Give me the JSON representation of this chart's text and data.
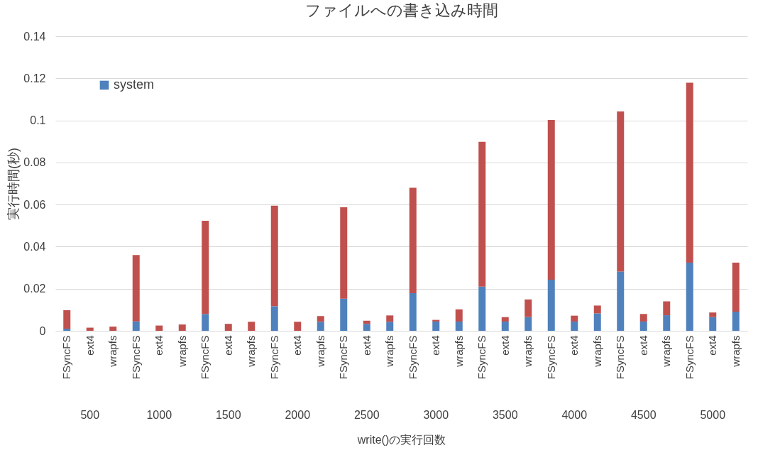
{
  "chart_data": {
    "type": "bar",
    "title": "ファイルへの書き込み時間",
    "xlabel": "write()の実行回数",
    "ylabel": "実行時間(秒)",
    "categories": [
      "FSyncFS",
      "ext4",
      "wrapfs",
      "FSyncFS",
      "ext4",
      "wrapfs",
      "FSyncFS",
      "ext4",
      "wrapfs",
      "FSyncFS",
      "ext4",
      "wrapfs",
      "FSyncFS",
      "ext4",
      "wrapfs",
      "FSyncFS",
      "ext4",
      "wrapfs",
      "FSyncFS",
      "ext4",
      "wrapfs",
      "FSyncFS",
      "ext4",
      "wrapfs",
      "FSyncFS",
      "ext4",
      "wrapfs",
      "FSyncFS",
      "ext4",
      "wrapfs"
    ],
    "annotations": [
      "500",
      "1000",
      "1500",
      "2000",
      "2500",
      "3000",
      "3500",
      "4000",
      "4500",
      "5000"
    ],
    "stacked": true,
    "series": [
      {
        "name": "system",
        "color": "#4f81bd",
        "values": [
          0.001,
          0,
          0,
          0.0045,
          0,
          0,
          0.008,
          0,
          0,
          0.0117,
          0,
          0.0043,
          0.0153,
          0.0033,
          0.0043,
          0.0179,
          0.0044,
          0.0044,
          0.021,
          0.0044,
          0.0065,
          0.0243,
          0.0044,
          0.0083,
          0.0282,
          0.0044,
          0.0074,
          0.0324,
          0.0065,
          0.0091
        ]
      },
      {
        "color": "#c0504d",
        "values": [
          0.0088,
          0.0015,
          0.002,
          0.0315,
          0.0025,
          0.003,
          0.0443,
          0.0033,
          0.0043,
          0.0478,
          0.0043,
          0.0027,
          0.0434,
          0.0015,
          0.003,
          0.0501,
          0.0008,
          0.0058,
          0.0688,
          0.0021,
          0.0084,
          0.0759,
          0.0028,
          0.0037,
          0.076,
          0.0036,
          0.0066,
          0.0855,
          0.0022,
          0.0233
        ]
      }
    ],
    "ylim": [
      0,
      0.14
    ],
    "yticks": [
      0,
      0.02,
      0.04,
      0.06,
      0.08,
      0.1,
      0.12,
      0.14
    ],
    "grid": "y",
    "legend": "top left"
  }
}
